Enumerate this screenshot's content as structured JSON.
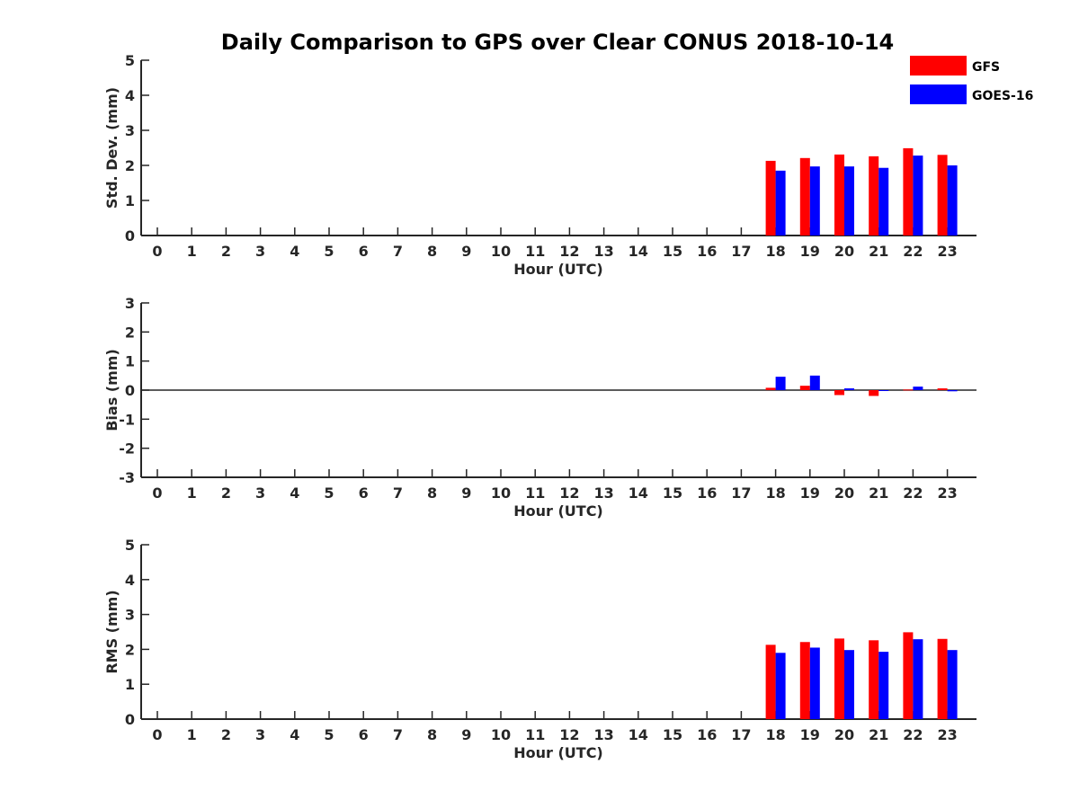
{
  "title": "Daily Comparison to GPS over Clear CONUS 2018-10-14",
  "legend": {
    "position": "top-right",
    "entries": [
      {
        "name": "GFS",
        "color": "#ff0000"
      },
      {
        "name": "GOES-16",
        "color": "#0000ff"
      }
    ]
  },
  "chart_data": [
    {
      "type": "bar",
      "xlabel": "Hour (UTC)",
      "ylabel": "Std. Dev. (mm)",
      "ylim": [
        0,
        5
      ],
      "yticks": [
        0,
        1,
        2,
        3,
        4,
        5
      ],
      "categories": [
        "0",
        "1",
        "2",
        "3",
        "4",
        "5",
        "6",
        "7",
        "8",
        "9",
        "10",
        "11",
        "12",
        "13",
        "14",
        "15",
        "16",
        "17",
        "18",
        "19",
        "20",
        "21",
        "22",
        "23"
      ],
      "series": [
        {
          "name": "GFS",
          "color": "#ff0000",
          "values": [
            null,
            null,
            null,
            null,
            null,
            null,
            null,
            null,
            null,
            null,
            null,
            null,
            null,
            null,
            null,
            null,
            null,
            null,
            2.13,
            2.21,
            2.31,
            2.26,
            2.49,
            2.3
          ]
        },
        {
          "name": "GOES-16",
          "color": "#0000ff",
          "values": [
            null,
            null,
            null,
            null,
            null,
            null,
            null,
            null,
            null,
            null,
            null,
            null,
            null,
            null,
            null,
            null,
            null,
            null,
            1.85,
            1.97,
            1.97,
            1.93,
            2.28,
            2.0
          ]
        }
      ]
    },
    {
      "type": "bar",
      "xlabel": "Hour (UTC)",
      "ylabel": "Bias (mm)",
      "ylim": [
        -3,
        3
      ],
      "yticks": [
        -3,
        -2,
        -1,
        0,
        1,
        2,
        3
      ],
      "zero_line": true,
      "categories": [
        "0",
        "1",
        "2",
        "3",
        "4",
        "5",
        "6",
        "7",
        "8",
        "9",
        "10",
        "11",
        "12",
        "13",
        "14",
        "15",
        "16",
        "17",
        "18",
        "19",
        "20",
        "21",
        "22",
        "23"
      ],
      "series": [
        {
          "name": "GFS",
          "color": "#ff0000",
          "values": [
            null,
            null,
            null,
            null,
            null,
            null,
            null,
            null,
            null,
            null,
            null,
            null,
            null,
            null,
            null,
            null,
            null,
            null,
            0.08,
            0.15,
            -0.17,
            -0.2,
            0.02,
            0.06
          ]
        },
        {
          "name": "GOES-16",
          "color": "#0000ff",
          "values": [
            null,
            null,
            null,
            null,
            null,
            null,
            null,
            null,
            null,
            null,
            null,
            null,
            null,
            null,
            null,
            null,
            null,
            null,
            0.46,
            0.5,
            0.06,
            0.0,
            0.12,
            -0.04
          ]
        }
      ]
    },
    {
      "type": "bar",
      "xlabel": "Hour (UTC)",
      "ylabel": "RMS (mm)",
      "ylim": [
        0,
        5
      ],
      "yticks": [
        0,
        1,
        2,
        3,
        4,
        5
      ],
      "categories": [
        "0",
        "1",
        "2",
        "3",
        "4",
        "5",
        "6",
        "7",
        "8",
        "9",
        "10",
        "11",
        "12",
        "13",
        "14",
        "15",
        "16",
        "17",
        "18",
        "19",
        "20",
        "21",
        "22",
        "23"
      ],
      "series": [
        {
          "name": "GFS",
          "color": "#ff0000",
          "values": [
            null,
            null,
            null,
            null,
            null,
            null,
            null,
            null,
            null,
            null,
            null,
            null,
            null,
            null,
            null,
            null,
            null,
            null,
            2.13,
            2.21,
            2.31,
            2.26,
            2.49,
            2.3
          ]
        },
        {
          "name": "GOES-16",
          "color": "#0000ff",
          "values": [
            null,
            null,
            null,
            null,
            null,
            null,
            null,
            null,
            null,
            null,
            null,
            null,
            null,
            null,
            null,
            null,
            null,
            null,
            1.9,
            2.05,
            1.98,
            1.93,
            2.29,
            1.98
          ]
        }
      ]
    }
  ]
}
